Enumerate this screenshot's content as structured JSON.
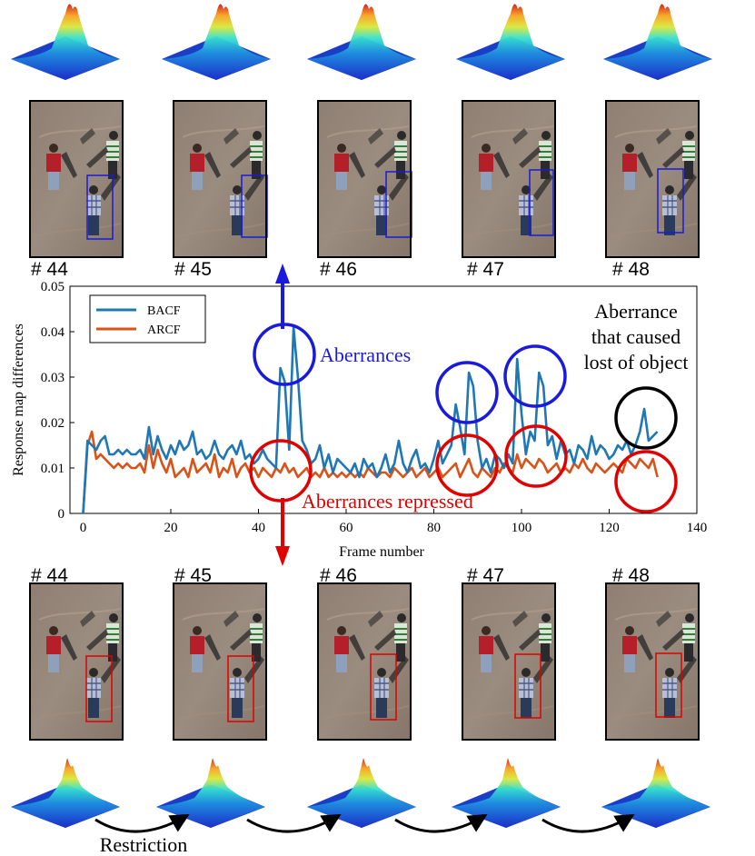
{
  "chart_data": {
    "type": "line",
    "title": "",
    "xlabel": "Frame number",
    "ylabel": "Response map differences",
    "xlim": [
      0,
      140
    ],
    "ylim": [
      0,
      0.05
    ],
    "xticks": [
      0,
      20,
      40,
      60,
      80,
      100,
      120,
      140
    ],
    "yticks": [
      0,
      0.01,
      0.02,
      0.03,
      0.04,
      0.05
    ],
    "xtick_labels": [
      "0",
      "20",
      "40",
      "60",
      "80",
      "100",
      "120",
      "140"
    ],
    "ytick_labels": [
      "0",
      "0.01",
      "0.02",
      "0.03",
      "0.04",
      "0.05"
    ],
    "legend": {
      "position": "top-left",
      "entries": [
        "BACF",
        "ARCF"
      ]
    },
    "series": [
      {
        "name": "BACF",
        "color": "#1f77b4",
        "x": [
          0,
          1,
          2,
          3,
          4,
          5,
          6,
          7,
          8,
          9,
          10,
          11,
          12,
          13,
          14,
          15,
          16,
          17,
          18,
          19,
          20,
          21,
          22,
          23,
          24,
          25,
          26,
          27,
          28,
          29,
          30,
          31,
          32,
          33,
          34,
          35,
          36,
          37,
          38,
          39,
          40,
          41,
          42,
          43,
          44,
          45,
          46,
          47,
          48,
          49,
          50,
          51,
          52,
          53,
          54,
          55,
          56,
          57,
          58,
          59,
          60,
          61,
          62,
          63,
          64,
          65,
          66,
          67,
          68,
          69,
          70,
          71,
          72,
          73,
          74,
          75,
          76,
          77,
          78,
          79,
          80,
          81,
          82,
          83,
          84,
          85,
          86,
          87,
          88,
          89,
          90,
          91,
          92,
          93,
          94,
          95,
          96,
          97,
          98,
          99,
          100,
          101,
          102,
          103,
          104,
          105,
          106,
          107,
          108,
          109,
          110,
          111,
          112,
          113,
          114,
          115,
          116,
          117,
          118,
          119,
          120,
          121,
          122,
          123,
          124,
          125,
          126,
          127,
          128,
          129,
          130,
          131
        ],
        "values": [
          0,
          0.016,
          0.015,
          0.014,
          0.016,
          0.017,
          0.013,
          0.013,
          0.014,
          0.013,
          0.014,
          0.013,
          0.013,
          0.014,
          0.012,
          0.019,
          0.013,
          0.017,
          0.014,
          0.012,
          0.015,
          0.013,
          0.016,
          0.014,
          0.015,
          0.018,
          0.013,
          0.014,
          0.012,
          0.013,
          0.016,
          0.013,
          0.012,
          0.014,
          0.015,
          0.013,
          0.016,
          0.012,
          0.013,
          0.011,
          0.012,
          0.014,
          0.012,
          0.011,
          0.01,
          0.032,
          0.029,
          0.014,
          0.041,
          0.03,
          0.016,
          0.014,
          0.011,
          0.012,
          0.015,
          0.01,
          0.013,
          0.009,
          0.012,
          0.011,
          0.01,
          0.009,
          0.011,
          0.008,
          0.012,
          0.01,
          0.011,
          0.008,
          0.01,
          0.013,
          0.009,
          0.011,
          0.016,
          0.011,
          0.009,
          0.012,
          0.014,
          0.01,
          0.011,
          0.009,
          0.012,
          0.016,
          0.011,
          0.013,
          0.015,
          0.024,
          0.019,
          0.013,
          0.031,
          0.028,
          0.016,
          0.01,
          0.012,
          0.009,
          0.013,
          0.012,
          0.01,
          0.013,
          0.011,
          0.034,
          0.022,
          0.013,
          0.018,
          0.016,
          0.031,
          0.028,
          0.015,
          0.017,
          0.012,
          0.016,
          0.013,
          0.014,
          0.011,
          0.015,
          0.014,
          0.012,
          0.017,
          0.013,
          0.015,
          0.014,
          0.012,
          0.013,
          0.015,
          0.014,
          0.016,
          0.013,
          0.015,
          0.018,
          0.023,
          0.016,
          0.017,
          0.018
        ]
      },
      {
        "name": "ARCF",
        "color": "#d95319",
        "x": [
          0,
          1,
          2,
          3,
          4,
          5,
          6,
          7,
          8,
          9,
          10,
          11,
          12,
          13,
          14,
          15,
          16,
          17,
          18,
          19,
          20,
          21,
          22,
          23,
          24,
          25,
          26,
          27,
          28,
          29,
          30,
          31,
          32,
          33,
          34,
          35,
          36,
          37,
          38,
          39,
          40,
          41,
          42,
          43,
          44,
          45,
          46,
          47,
          48,
          49,
          50,
          51,
          52,
          53,
          54,
          55,
          56,
          57,
          58,
          59,
          60,
          61,
          62,
          63,
          64,
          65,
          66,
          67,
          68,
          69,
          70,
          71,
          72,
          73,
          74,
          75,
          76,
          77,
          78,
          79,
          80,
          81,
          82,
          83,
          84,
          85,
          86,
          87,
          88,
          89,
          90,
          91,
          92,
          93,
          94,
          95,
          96,
          97,
          98,
          99,
          100,
          101,
          102,
          103,
          104,
          105,
          106,
          107,
          108,
          109,
          110,
          111,
          112,
          113,
          114,
          115,
          116,
          117,
          118,
          119,
          120,
          121,
          122,
          123,
          124,
          125,
          126,
          127,
          128,
          129,
          130,
          131
        ],
        "values": [
          0,
          0.015,
          0.018,
          0.012,
          0.013,
          0.012,
          0.011,
          0.01,
          0.011,
          0.01,
          0.011,
          0.01,
          0.01,
          0.011,
          0.009,
          0.015,
          0.01,
          0.014,
          0.011,
          0.009,
          0.012,
          0.008,
          0.009,
          0.01,
          0.008,
          0.012,
          0.009,
          0.01,
          0.011,
          0.009,
          0.013,
          0.008,
          0.01,
          0.009,
          0.012,
          0.008,
          0.01,
          0.011,
          0.009,
          0.01,
          0.008,
          0.01,
          0.009,
          0.008,
          0.01,
          0.009,
          0.011,
          0.009,
          0.01,
          0.008,
          0.009,
          0.01,
          0.008,
          0.009,
          0.008,
          0.01,
          0.008,
          0.009,
          0.008,
          0.009,
          0.008,
          0.009,
          0.008,
          0.009,
          0.008,
          0.01,
          0.009,
          0.008,
          0.009,
          0.009,
          0.008,
          0.01,
          0.009,
          0.008,
          0.009,
          0.01,
          0.008,
          0.009,
          0.01,
          0.008,
          0.009,
          0.01,
          0.008,
          0.009,
          0.01,
          0.011,
          0.008,
          0.01,
          0.012,
          0.009,
          0.008,
          0.01,
          0.009,
          0.008,
          0.01,
          0.009,
          0.011,
          0.01,
          0.009,
          0.013,
          0.01,
          0.012,
          0.011,
          0.01,
          0.012,
          0.011,
          0.009,
          0.01,
          0.011,
          0.009,
          0.01,
          0.009,
          0.011,
          0.01,
          0.012,
          0.01,
          0.009,
          0.011,
          0.01,
          0.009,
          0.01,
          0.011,
          0.01,
          0.009,
          0.012,
          0.011,
          0.01,
          0.012,
          0.011,
          0.01,
          0.012,
          0.008
        ]
      }
    ],
    "annotations": [
      {
        "text": "Aberrances",
        "color": "#1a1adc"
      },
      {
        "text": "Aberrances repressed",
        "color": "#e00000"
      },
      {
        "text": "Aberrance that caused lost of object",
        "color": "#000000"
      },
      {
        "text": "Restriction",
        "color": "#000000"
      }
    ]
  },
  "frames_top": [
    "# 44",
    "# 45",
    "# 46",
    "# 47",
    "# 48"
  ],
  "frames_bottom": [
    "# 44",
    "# 45",
    "# 46",
    "# 47",
    "# 48"
  ],
  "labels": {
    "aberrances": "Aberrances",
    "repressed": "Aberrances repressed",
    "lost_line1": "Aberrance",
    "lost_line2": "that caused",
    "lost_line3": "lost of object",
    "restriction": "Restriction"
  },
  "colors": {
    "bacf": "#1f77b4",
    "arcf": "#d95319",
    "blue_box": "#1a1adc",
    "red_box": "#e00000"
  }
}
